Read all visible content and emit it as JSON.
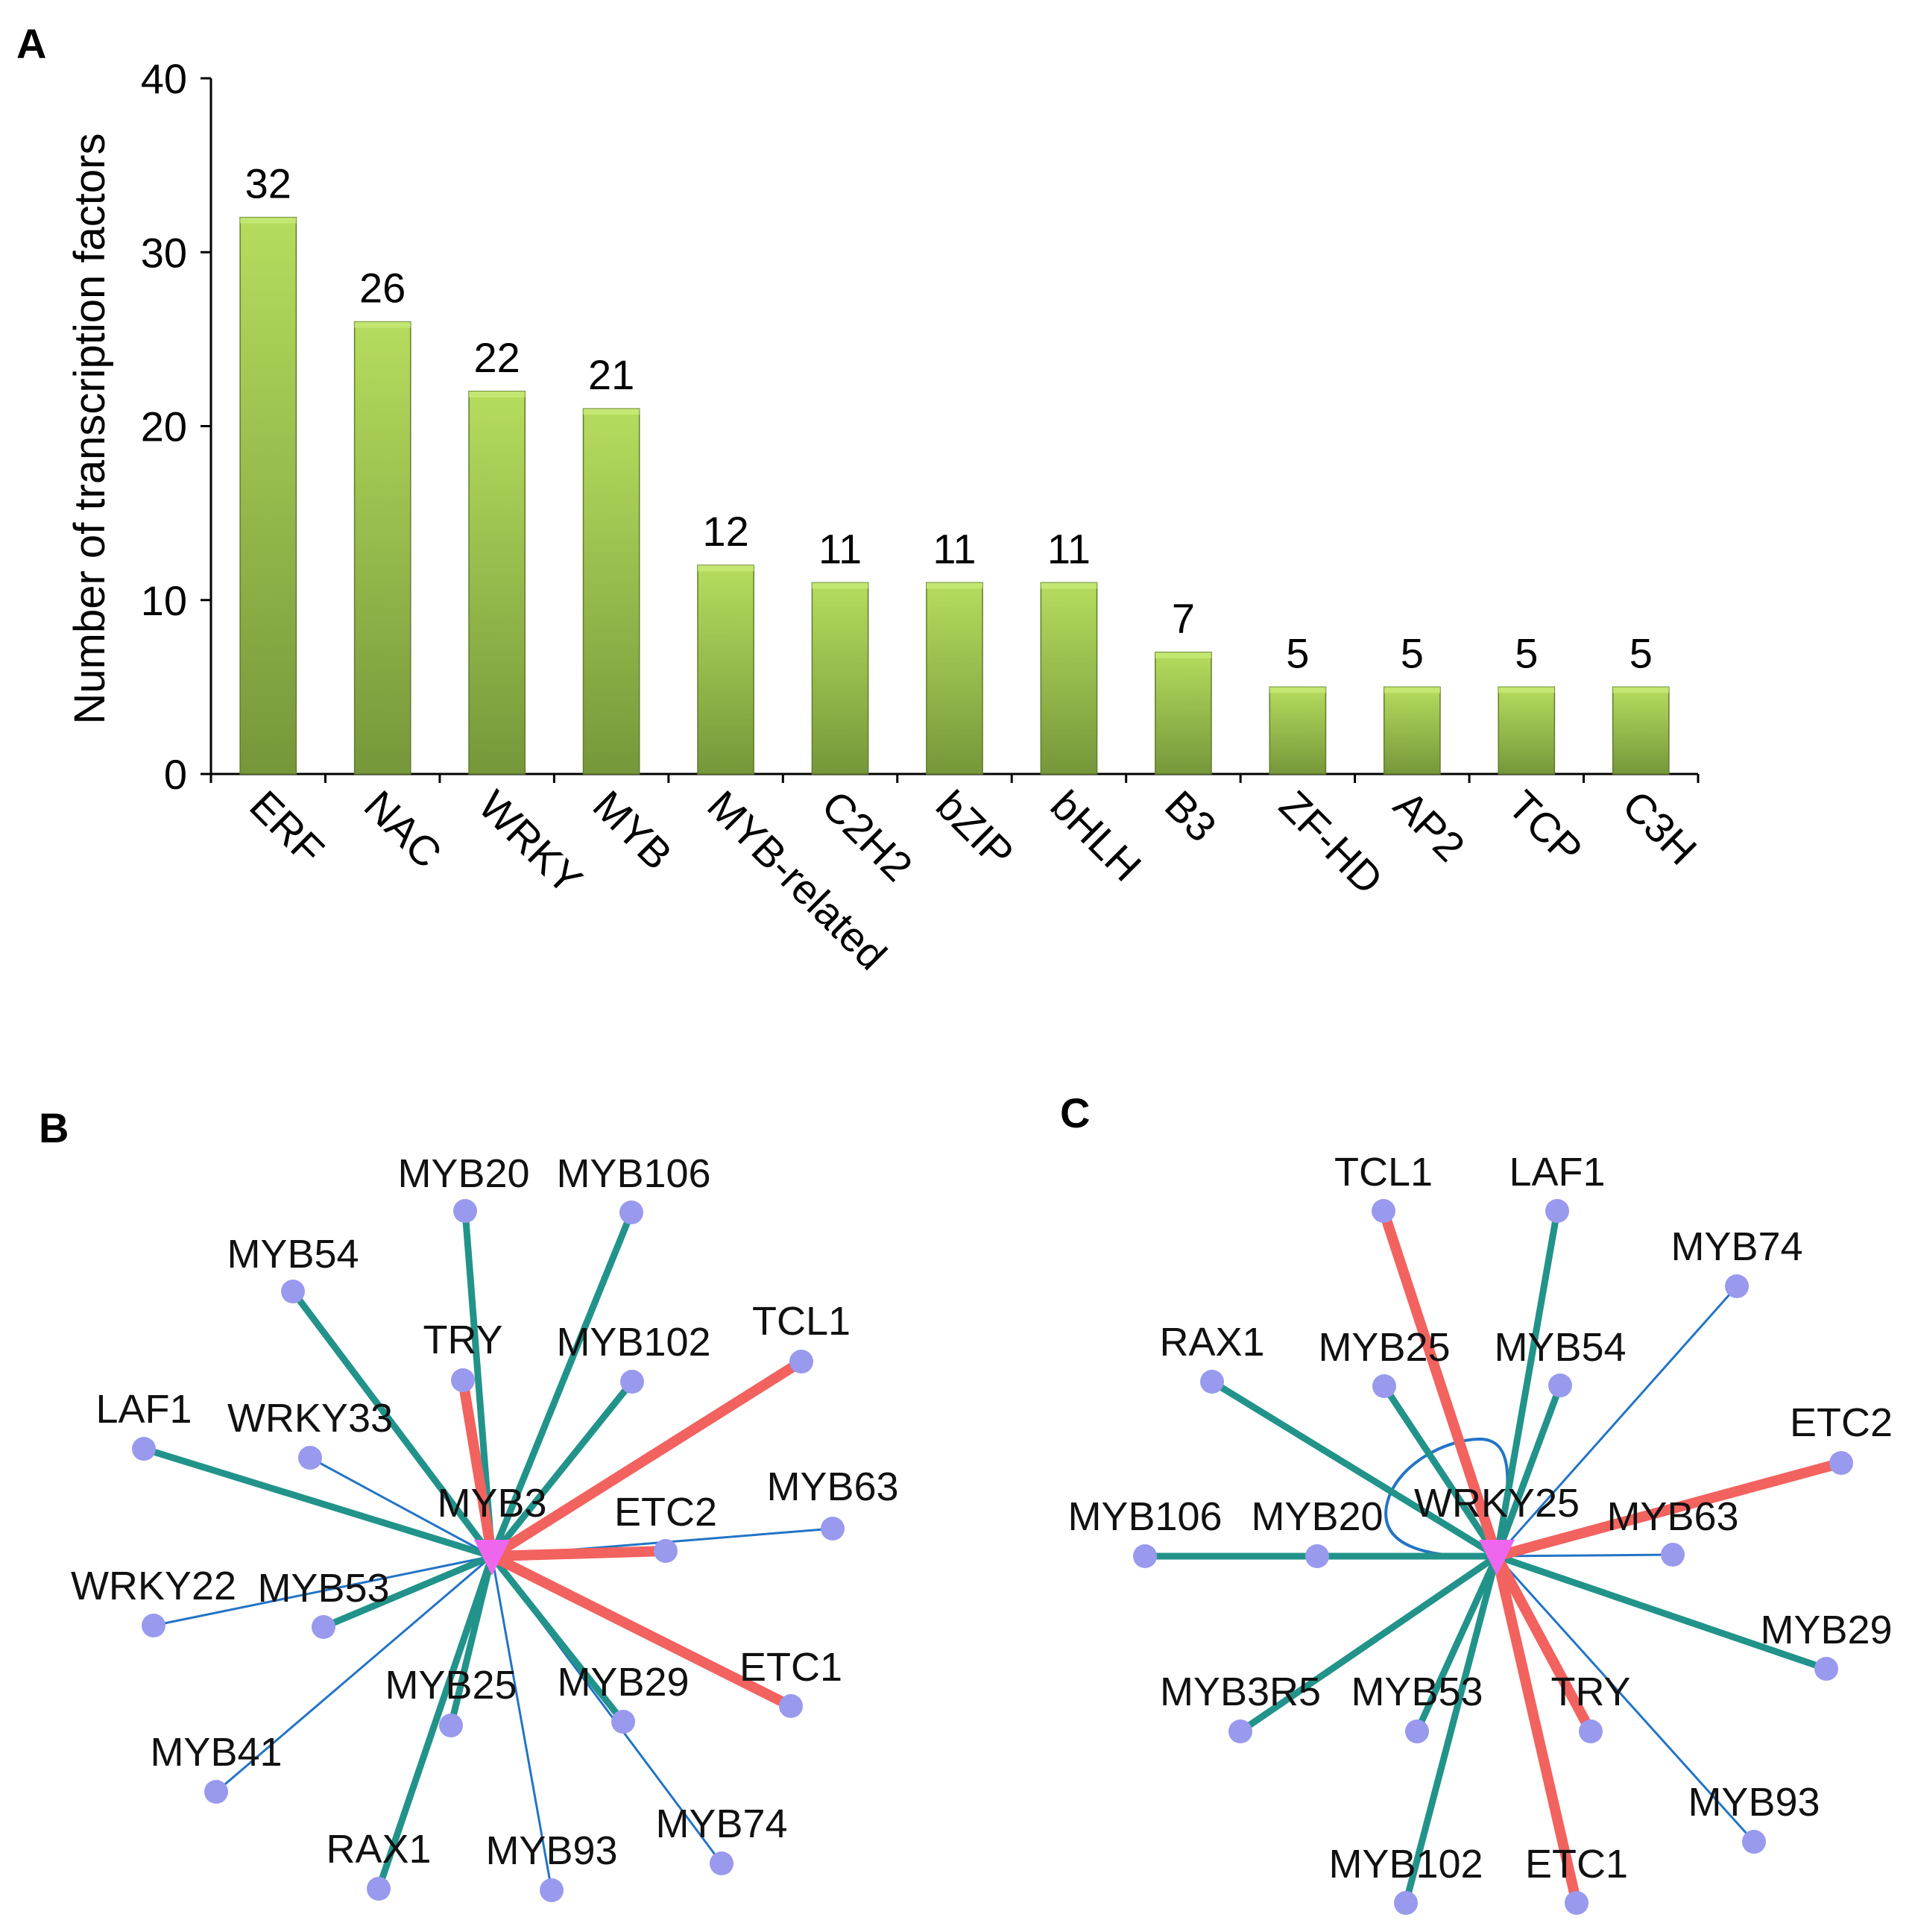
{
  "panels": {
    "a": "A",
    "b": "B",
    "c": "C"
  },
  "chart_data": {
    "type": "bar",
    "title": "",
    "xlabel": "",
    "ylabel": "Number of transcription factors",
    "ylim": [
      0,
      40
    ],
    "yticks": [
      0,
      10,
      20,
      30,
      40
    ],
    "categories": [
      "ERF",
      "NAC",
      "WRKY",
      "MYB",
      "MYB-related",
      "C2H2",
      "bZIP",
      "bHLH",
      "B3",
      "ZF-HD",
      "AP2",
      "TCP",
      "C3H"
    ],
    "values": [
      32,
      26,
      22,
      21,
      12,
      11,
      11,
      11,
      7,
      5,
      5,
      5,
      5
    ],
    "colors": {
      "bar_top": "#b6dc5e",
      "bar_bottom": "#76973a",
      "bar_edge": "#5f7d2c"
    }
  },
  "network_b": {
    "hub": "MYB3",
    "nodes": [
      "MYB20",
      "MYB106",
      "MYB54",
      "TRY",
      "MYB102",
      "TCL1",
      "LAF1",
      "WRKY33",
      "ETC2",
      "MYB63",
      "WRKY22",
      "MYB53",
      "MYB25",
      "MYB29",
      "ETC1",
      "MYB41",
      "RAX1",
      "MYB93",
      "MYB74"
    ]
  },
  "network_c": {
    "hub": "WRKY25",
    "nodes": [
      "TCL1",
      "LAF1",
      "MYB74",
      "RAX1",
      "MYB25",
      "MYB54",
      "ETC2",
      "MYB106",
      "MYB20",
      "MYB63",
      "MYB29",
      "MYB3R5",
      "MYB53",
      "TRY",
      "MYB93",
      "MYB102",
      "ETC1"
    ]
  },
  "network_colors": {
    "red": "#f2625f",
    "teal": "#22938a",
    "blue": "#2374c6",
    "node": "#9999ee",
    "hub": "#ee66ee"
  }
}
